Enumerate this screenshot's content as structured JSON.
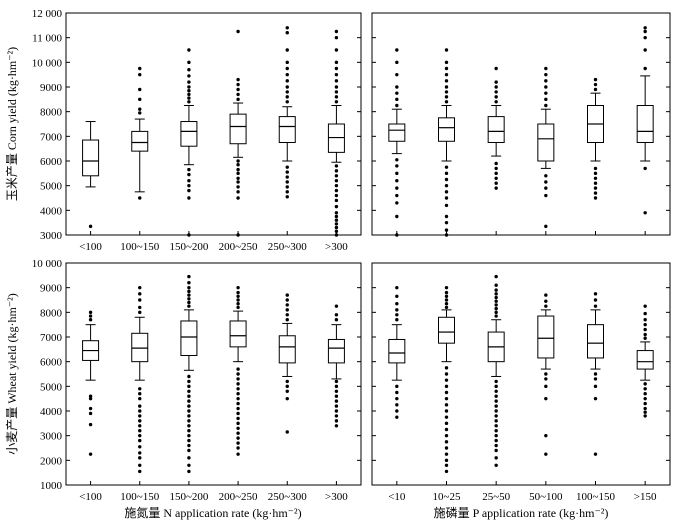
{
  "chart_data": [
    {
      "id": "corn-n",
      "type": "box",
      "ylabel": "玉米产量 Corn yield (kg·hm⁻²)",
      "xlabel": "",
      "ylim": [
        3000,
        12000
      ],
      "yticks": [
        3000,
        4000,
        5000,
        6000,
        7000,
        8000,
        9000,
        10000,
        11000,
        12000
      ],
      "ytick_labels": [
        "3000",
        "4000",
        "5000",
        "6000",
        "7000",
        "8000",
        "9000",
        "10 000",
        "11 000",
        "12 000"
      ],
      "categories": [
        "<100",
        "100~150",
        "150~200",
        "200~250",
        "250~300",
        ">300"
      ],
      "boxes": [
        {
          "q1": 5400,
          "median": 6000,
          "q3": 6850,
          "low": 4950,
          "high": 7600,
          "outliers": [
            3350
          ]
        },
        {
          "q1": 6400,
          "median": 6750,
          "q3": 7200,
          "low": 4750,
          "high": 7700,
          "outliers": [
            4500,
            7950,
            8100,
            8500,
            8900,
            9500,
            9750
          ]
        },
        {
          "q1": 6600,
          "median": 7200,
          "q3": 7600,
          "low": 5850,
          "high": 8250,
          "outliers": [
            3000,
            4500,
            4800,
            5000,
            5200,
            5450,
            5650,
            8400,
            8550,
            8700,
            8850,
            9000,
            9200,
            9450,
            9700,
            10000,
            10500
          ]
        },
        {
          "q1": 6700,
          "median": 7400,
          "q3": 7900,
          "low": 6150,
          "high": 8350,
          "outliers": [
            3000,
            4500,
            4750,
            4950,
            5150,
            5300,
            5500,
            5650,
            5850,
            6000,
            8500,
            8700,
            8900,
            9100,
            9300,
            11250
          ]
        },
        {
          "q1": 6750,
          "median": 7400,
          "q3": 7800,
          "low": 6000,
          "high": 8200,
          "outliers": [
            4550,
            4750,
            4950,
            5150,
            5350,
            5550,
            5750,
            8400,
            8600,
            8800,
            9000,
            9250,
            9500,
            9750,
            10000,
            10500,
            11200,
            11400
          ]
        },
        {
          "q1": 6350,
          "median": 6950,
          "q3": 7500,
          "low": 5950,
          "high": 8250,
          "outliers": [
            3000,
            3150,
            3300,
            3450,
            3600,
            3750,
            3900,
            4150,
            4400,
            4600,
            4800,
            5000,
            5200,
            5400,
            5600,
            5800,
            8400,
            8600,
            8800,
            9000,
            9250,
            9500,
            9750,
            10000,
            10500,
            11000,
            11250
          ]
        }
      ]
    },
    {
      "id": "corn-p",
      "type": "box",
      "ylabel": "",
      "xlabel": "",
      "ylim": [
        3000,
        12000
      ],
      "yticks": [
        3000,
        4000,
        5000,
        6000,
        7000,
        8000,
        9000,
        10000,
        11000,
        12000
      ],
      "categories": [
        "<10",
        "10~25",
        "25~50",
        "50~100",
        "100~150",
        ">150"
      ],
      "boxes": [
        {
          "q1": 6800,
          "median": 7250,
          "q3": 7500,
          "low": 6300,
          "high": 8100,
          "outliers": [
            3000,
            3750,
            4300,
            4600,
            4900,
            5200,
            5500,
            5800,
            6050,
            8250,
            8500,
            8750,
            9000,
            9500,
            10000,
            10500
          ]
        },
        {
          "q1": 6800,
          "median": 7350,
          "q3": 7750,
          "low": 6000,
          "high": 8250,
          "outliers": [
            3000,
            3200,
            3500,
            3750,
            4200,
            4500,
            4750,
            5000,
            5250,
            5500,
            5750,
            8400,
            8600,
            8800,
            9000,
            9250,
            9500,
            9750,
            10000,
            10500
          ]
        },
        {
          "q1": 6750,
          "median": 7200,
          "q3": 7800,
          "low": 6200,
          "high": 8250,
          "outliers": [
            4900,
            5100,
            5300,
            5500,
            5700,
            5900,
            8400,
            8600,
            8800,
            9000,
            9200,
            9750
          ]
        },
        {
          "q1": 6000,
          "median": 6900,
          "q3": 7500,
          "low": 5700,
          "high": 8100,
          "outliers": [
            3350,
            4600,
            4900,
            5150,
            5400,
            8250,
            8500,
            8750,
            9000,
            9250,
            9500,
            9750
          ]
        },
        {
          "q1": 6750,
          "median": 7500,
          "q3": 8250,
          "low": 6000,
          "high": 8750,
          "outliers": [
            4500,
            4700,
            4900,
            5100,
            5300,
            5500,
            5700,
            8900,
            9100,
            9300
          ]
        },
        {
          "q1": 6750,
          "median": 7200,
          "q3": 8250,
          "low": 6000,
          "high": 9450,
          "outliers": [
            3900,
            5700,
            9750,
            10500,
            11000,
            11250,
            11400
          ]
        }
      ]
    },
    {
      "id": "wheat-n",
      "type": "box",
      "ylabel": "小麦产量 Wheat yield (kg·hm⁻²)",
      "xlabel": "施氮量 N application rate (kg·hm⁻²)",
      "ylim": [
        1000,
        10000
      ],
      "yticks": [
        1000,
        2000,
        3000,
        4000,
        5000,
        6000,
        7000,
        8000,
        9000,
        10000
      ],
      "ytick_labels": [
        "1000",
        "2000",
        "3000",
        "4000",
        "5000",
        "6000",
        "7000",
        "8000",
        "9000",
        "10 000"
      ],
      "categories": [
        "<100",
        "100~150",
        "150~200",
        "200~250",
        "250~300",
        ">300"
      ],
      "boxes": [
        {
          "q1": 6050,
          "median": 6450,
          "q3": 6850,
          "low": 5250,
          "high": 7500,
          "outliers": [
            2250,
            3450,
            3900,
            4100,
            4500,
            4600,
            7700,
            7850,
            8000
          ]
        },
        {
          "q1": 6000,
          "median": 6550,
          "q3": 7150,
          "low": 5250,
          "high": 7800,
          "outliers": [
            1550,
            1800,
            2100,
            2300,
            2550,
            2800,
            3000,
            3200,
            3400,
            3600,
            3800,
            4000,
            4200,
            4500,
            4700,
            4900,
            8000,
            8200,
            8500,
            8750,
            9000
          ]
        },
        {
          "q1": 6250,
          "median": 7000,
          "q3": 7650,
          "low": 5650,
          "high": 8100,
          "outliers": [
            1550,
            1800,
            2100,
            2400,
            2600,
            2800,
            3000,
            3200,
            3400,
            3600,
            3800,
            4000,
            4200,
            4400,
            4600,
            4800,
            5000,
            5200,
            5400,
            8250,
            8400,
            8550,
            8700,
            8850,
            9000,
            9200,
            9450
          ]
        },
        {
          "q1": 6600,
          "median": 7050,
          "q3": 7650,
          "low": 6000,
          "high": 8050,
          "outliers": [
            2250,
            2500,
            2700,
            2900,
            3100,
            3300,
            3500,
            3700,
            3900,
            4100,
            4300,
            4500,
            4700,
            4900,
            5100,
            5300,
            5500,
            5700,
            8200,
            8350,
            8500,
            8650,
            8800,
            9000
          ]
        },
        {
          "q1": 5950,
          "median": 6600,
          "q3": 7050,
          "low": 5400,
          "high": 7550,
          "outliers": [
            3150,
            4500,
            4800,
            5000,
            5200,
            7700,
            7900,
            8100,
            8300,
            8500,
            8700
          ]
        },
        {
          "q1": 5950,
          "median": 6550,
          "q3": 6900,
          "low": 5300,
          "high": 7500,
          "outliers": [
            3400,
            3600,
            3800,
            4000,
            4200,
            4400,
            4600,
            4800,
            5000,
            5200,
            7700,
            7900,
            8250
          ]
        }
      ]
    },
    {
      "id": "wheat-p",
      "type": "box",
      "ylabel": "",
      "xlabel": "施磷量 P application rate (kg·hm⁻²)",
      "ylim": [
        1000,
        10000
      ],
      "yticks": [
        1000,
        2000,
        3000,
        4000,
        5000,
        6000,
        7000,
        8000,
        9000,
        10000
      ],
      "categories": [
        "<10",
        "10~25",
        "25~50",
        "50~100",
        "100~150",
        ">150"
      ],
      "boxes": [
        {
          "q1": 5950,
          "median": 6350,
          "q3": 6900,
          "low": 5250,
          "high": 7500,
          "outliers": [
            3750,
            4000,
            4250,
            4500,
            4750,
            5000,
            7700,
            7900,
            8100,
            8350,
            8650,
            9000
          ]
        },
        {
          "q1": 6750,
          "median": 7200,
          "q3": 7800,
          "low": 6000,
          "high": 8100,
          "outliers": [
            1550,
            1800,
            2000,
            2250,
            2500,
            2750,
            3000,
            3250,
            3500,
            3750,
            4000,
            4250,
            4500,
            4750,
            5000,
            5250,
            5500,
            5750,
            8200,
            8350,
            8500,
            8650,
            8800,
            9000
          ]
        },
        {
          "q1": 6000,
          "median": 6600,
          "q3": 7200,
          "low": 5400,
          "high": 7700,
          "outliers": [
            1800,
            2100,
            2400,
            2600,
            2800,
            3000,
            3200,
            3400,
            3600,
            3800,
            4000,
            4200,
            4400,
            4600,
            4800,
            5000,
            5200,
            7850,
            8000,
            8150,
            8300,
            8450,
            8600,
            8750,
            8900,
            9100,
            9450
          ]
        },
        {
          "q1": 6150,
          "median": 6950,
          "q3": 7850,
          "low": 5700,
          "high": 8100,
          "outliers": [
            2250,
            3000,
            4500,
            5000,
            5300,
            5500,
            8250,
            8450,
            8700
          ]
        },
        {
          "q1": 6150,
          "median": 6750,
          "q3": 7500,
          "low": 5700,
          "high": 8100,
          "outliers": [
            2250,
            4500,
            5000,
            5300,
            5500,
            8250,
            8500,
            8750
          ]
        },
        {
          "q1": 5700,
          "median": 6000,
          "q3": 6450,
          "low": 5250,
          "high": 6800,
          "outliers": [
            3800,
            3950,
            4100,
            4300,
            4500,
            4700,
            4900,
            5100,
            6950,
            7100,
            7300,
            7500,
            7700,
            7950,
            8250
          ]
        }
      ]
    }
  ]
}
